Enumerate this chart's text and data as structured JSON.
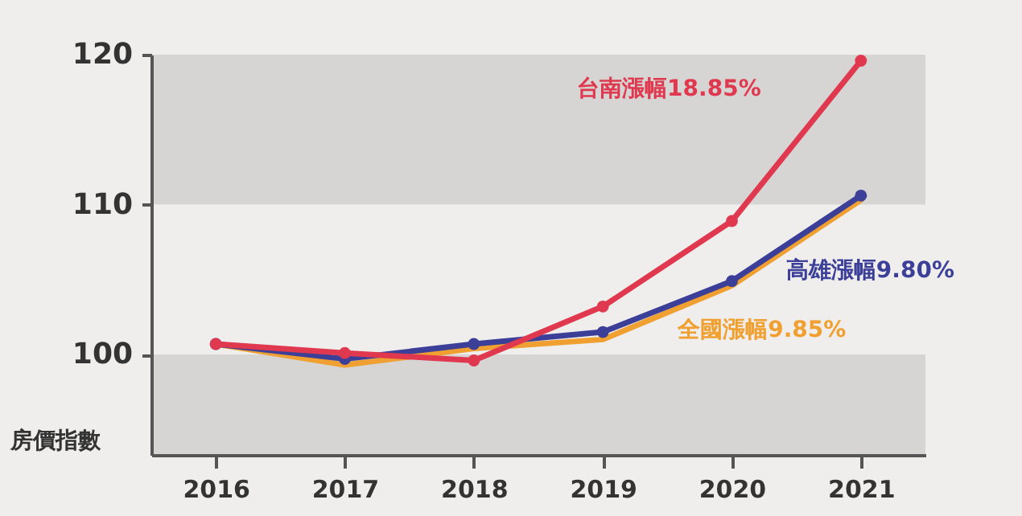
{
  "chart_data": {
    "type": "line",
    "ylabel": "房價指數",
    "categories": [
      "2016",
      "2017",
      "2018",
      "2019",
      "2020",
      "2021"
    ],
    "series": [
      {
        "name": "全國漲幅9.85%",
        "color": "#f0a030",
        "marker": "none",
        "values": [
          100.7,
          99.3,
          100.4,
          101.0,
          104.6,
          110.3
        ]
      },
      {
        "name": "高雄漲幅9.80%",
        "color": "#3c3f98",
        "values": [
          100.7,
          99.7,
          100.7,
          101.5,
          104.9,
          110.6
        ]
      },
      {
        "name": "台南漲幅18.85%",
        "color": "#e0394f",
        "values": [
          100.7,
          100.1,
          99.6,
          103.2,
          108.9,
          119.6
        ]
      }
    ],
    "bands": [
      {
        "axis": "y",
        "from": 93.3,
        "to": 100,
        "color": "#d6d5d3"
      },
      {
        "axis": "y",
        "from": 110,
        "to": 120,
        "color": "#d6d5d3"
      }
    ],
    "ylim": [
      93.3,
      120
    ],
    "yticks": [
      100,
      110,
      120
    ],
    "marker": "circle",
    "grid": false,
    "legend": false
  }
}
